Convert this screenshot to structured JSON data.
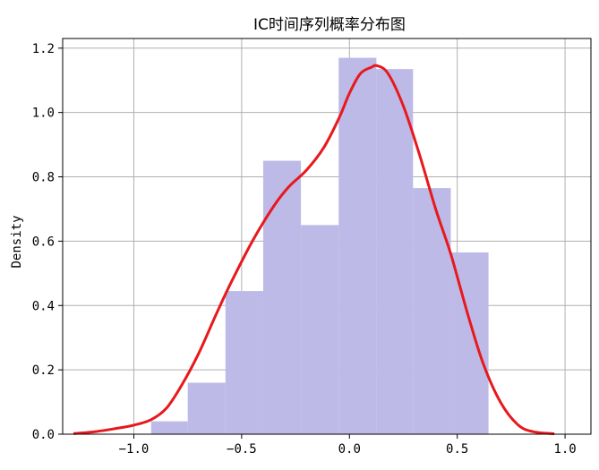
{
  "chart_data": {
    "type": "bar",
    "title": "IC时间序列概率分布图",
    "xlabel": "",
    "ylabel": "Density",
    "xlim": [
      -1.33,
      1.12
    ],
    "ylim": [
      0,
      1.23
    ],
    "xticks": [
      -1.0,
      -0.5,
      0.0,
      0.5,
      1.0
    ],
    "xtick_labels": [
      "−1.0",
      "−0.5",
      "0.0",
      "0.5",
      "1.0"
    ],
    "yticks": [
      0.0,
      0.2,
      0.4,
      0.6,
      0.8,
      1.0,
      1.2
    ],
    "ytick_labels": [
      "0.0",
      "0.2",
      "0.4",
      "0.6",
      "0.8",
      "1.0",
      "1.2"
    ],
    "grid": true,
    "histogram": {
      "color": "#bdbae8",
      "bin_edges": [
        -0.92,
        -0.75,
        -0.575,
        -0.4,
        -0.225,
        -0.05,
        0.125,
        0.295,
        0.47,
        0.645
      ],
      "densities": [
        0.04,
        0.16,
        0.445,
        0.85,
        0.65,
        1.17,
        1.135,
        0.765,
        0.565
      ]
    },
    "kde": {
      "color": "#e8181c",
      "x": [
        -1.28,
        -1.2,
        -1.1,
        -1.0,
        -0.92,
        -0.85,
        -0.78,
        -0.7,
        -0.62,
        -0.55,
        -0.45,
        -0.35,
        -0.28,
        -0.2,
        -0.12,
        -0.05,
        0.0,
        0.05,
        0.1,
        0.13,
        0.18,
        0.25,
        0.32,
        0.4,
        0.47,
        0.55,
        0.62,
        0.7,
        0.78,
        0.85,
        0.95
      ],
      "y": [
        0.002,
        0.006,
        0.016,
        0.028,
        0.045,
        0.08,
        0.15,
        0.25,
        0.37,
        0.47,
        0.6,
        0.71,
        0.77,
        0.82,
        0.89,
        0.98,
        1.06,
        1.12,
        1.14,
        1.145,
        1.12,
        1.02,
        0.88,
        0.7,
        0.56,
        0.37,
        0.22,
        0.1,
        0.03,
        0.008,
        0.001
      ]
    }
  }
}
